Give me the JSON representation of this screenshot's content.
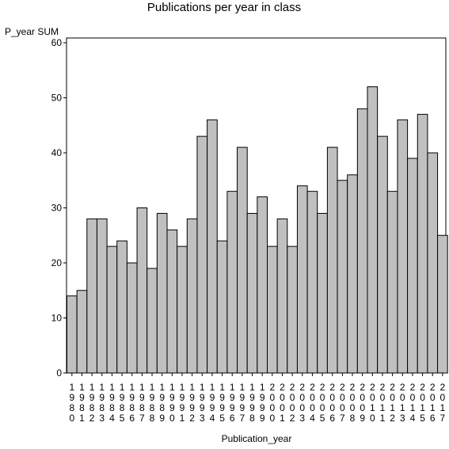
{
  "chart_data": {
    "type": "bar",
    "title": "Publications per year in class",
    "ylabel": "P_year SUM",
    "xlabel": "Publication_year",
    "ylim": [
      0,
      60
    ],
    "yticks": [
      0,
      10,
      20,
      30,
      40,
      50,
      60
    ],
    "grid": false,
    "bar_color": "#c0c0c0",
    "categories": [
      "1980",
      "1981",
      "1982",
      "1983",
      "1984",
      "1985",
      "1986",
      "1987",
      "1988",
      "1989",
      "1990",
      "1991",
      "1992",
      "1993",
      "1994",
      "1995",
      "1996",
      "1997",
      "1998",
      "1999",
      "2000",
      "2001",
      "2002",
      "2003",
      "2004",
      "2005",
      "2006",
      "2007",
      "2008",
      "2009",
      "2010",
      "2011",
      "2012",
      "2013",
      "2014",
      "2015",
      "2016",
      "2017"
    ],
    "values": [
      14,
      15,
      28,
      28,
      23,
      24,
      20,
      30,
      19,
      29,
      26,
      23,
      28,
      43,
      46,
      24,
      33,
      41,
      29,
      32,
      23,
      28,
      23,
      34,
      33,
      29,
      41,
      35,
      36,
      48,
      52,
      43,
      33,
      46,
      39,
      47,
      40,
      25
    ]
  }
}
